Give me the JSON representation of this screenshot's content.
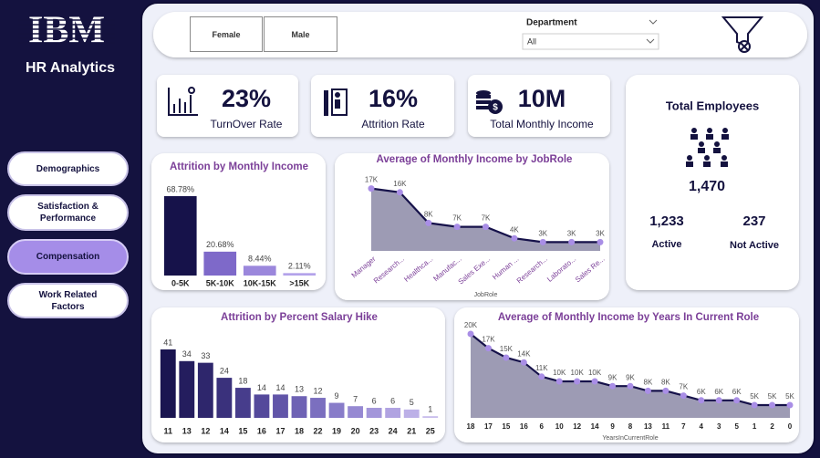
{
  "sidebar": {
    "logo": "IBM",
    "title": "HR Analytics",
    "nav": [
      "Demographics",
      "Satisfaction & Performance",
      "Compensation",
      "Work Related Factors"
    ]
  },
  "filters": {
    "gender": [
      "Female",
      "Male"
    ],
    "department_label": "Department",
    "department_value": "All"
  },
  "kpis": [
    {
      "value": "23%",
      "label": "TurnOver Rate"
    },
    {
      "value": "16%",
      "label": "Attrition Rate"
    },
    {
      "value": "10M",
      "label": "Total Monthly Income"
    }
  ],
  "total_employees": {
    "title": "Total Employees",
    "value": "1,470",
    "active_value": "1,233",
    "active_label": "Active",
    "inactive_value": "237",
    "inactive_label": "Not Active"
  },
  "chart_data": [
    {
      "type": "bar",
      "title": "Attrition by Monthly Income",
      "categories": [
        "0-5K",
        "5K-10K",
        "10K-15K",
        ">15K"
      ],
      "values": [
        68.78,
        20.68,
        8.44,
        2.11
      ],
      "value_labels": [
        "68.78%",
        "20.68%",
        "8.44%",
        "2.11%"
      ],
      "colors": [
        "#16124a",
        "#7e69c9",
        "#9b87dc",
        "#b3a2ea"
      ]
    },
    {
      "type": "area",
      "title": "Average of Monthly Income by JobRole",
      "x_label": "JobRole",
      "categories": [
        "Manager",
        "Research...",
        "Healthca...",
        "Manufac...",
        "Sales Exe...",
        "Human ...",
        "Research...",
        "Laborato...",
        "Sales Re..."
      ],
      "values": [
        17000,
        16000,
        8000,
        7000,
        7000,
        4000,
        3000,
        3000,
        3000
      ],
      "value_labels": [
        "17K",
        "16K",
        "8K",
        "7K",
        "7K",
        "4K",
        "3K",
        "3K",
        "3K"
      ],
      "color": "#16124a",
      "fill_color": "#9d9bb4",
      "point_color": "#a98ee6"
    },
    {
      "type": "bar",
      "title": "Attrition by Percent Salary Hike",
      "categories": [
        "11",
        "13",
        "12",
        "14",
        "15",
        "16",
        "17",
        "18",
        "22",
        "19",
        "20",
        "23",
        "24",
        "21",
        "25"
      ],
      "values": [
        41,
        34,
        33,
        24,
        18,
        14,
        14,
        13,
        12,
        9,
        7,
        6,
        6,
        5,
        1
      ],
      "colors": [
        "#1a1550",
        "#241d5e",
        "#2e266c",
        "#3a317c",
        "#473d8c",
        "#54499b",
        "#6155a8",
        "#6e62b4",
        "#7b6fbf",
        "#887cc9",
        "#9689d2",
        "#a396da",
        "#b0a3e1",
        "#bcb0e7",
        "#c8bdec"
      ]
    },
    {
      "type": "area",
      "title": "Average of Monthly Income by Years In Current Role",
      "x_label": "YearsInCurrentRole",
      "categories": [
        "18",
        "17",
        "15",
        "16",
        "6",
        "10",
        "12",
        "14",
        "9",
        "8",
        "13",
        "11",
        "7",
        "4",
        "3",
        "5",
        "1",
        "2",
        "0"
      ],
      "values": [
        20000,
        17000,
        15000,
        14000,
        11000,
        10000,
        10000,
        10000,
        9000,
        9000,
        8000,
        8000,
        7000,
        6000,
        6000,
        6000,
        5000,
        5000,
        5000
      ],
      "value_labels": [
        "20K",
        "17K",
        "15K",
        "14K",
        "11K",
        "10K",
        "10K",
        "10K",
        "9K",
        "9K",
        "8K",
        "8K",
        "7K",
        "6K",
        "6K",
        "6K",
        "5K",
        "5K",
        "5K"
      ],
      "color": "#16124a",
      "fill_color": "#9d9bb4",
      "point_color": "#a98ee6"
    }
  ]
}
